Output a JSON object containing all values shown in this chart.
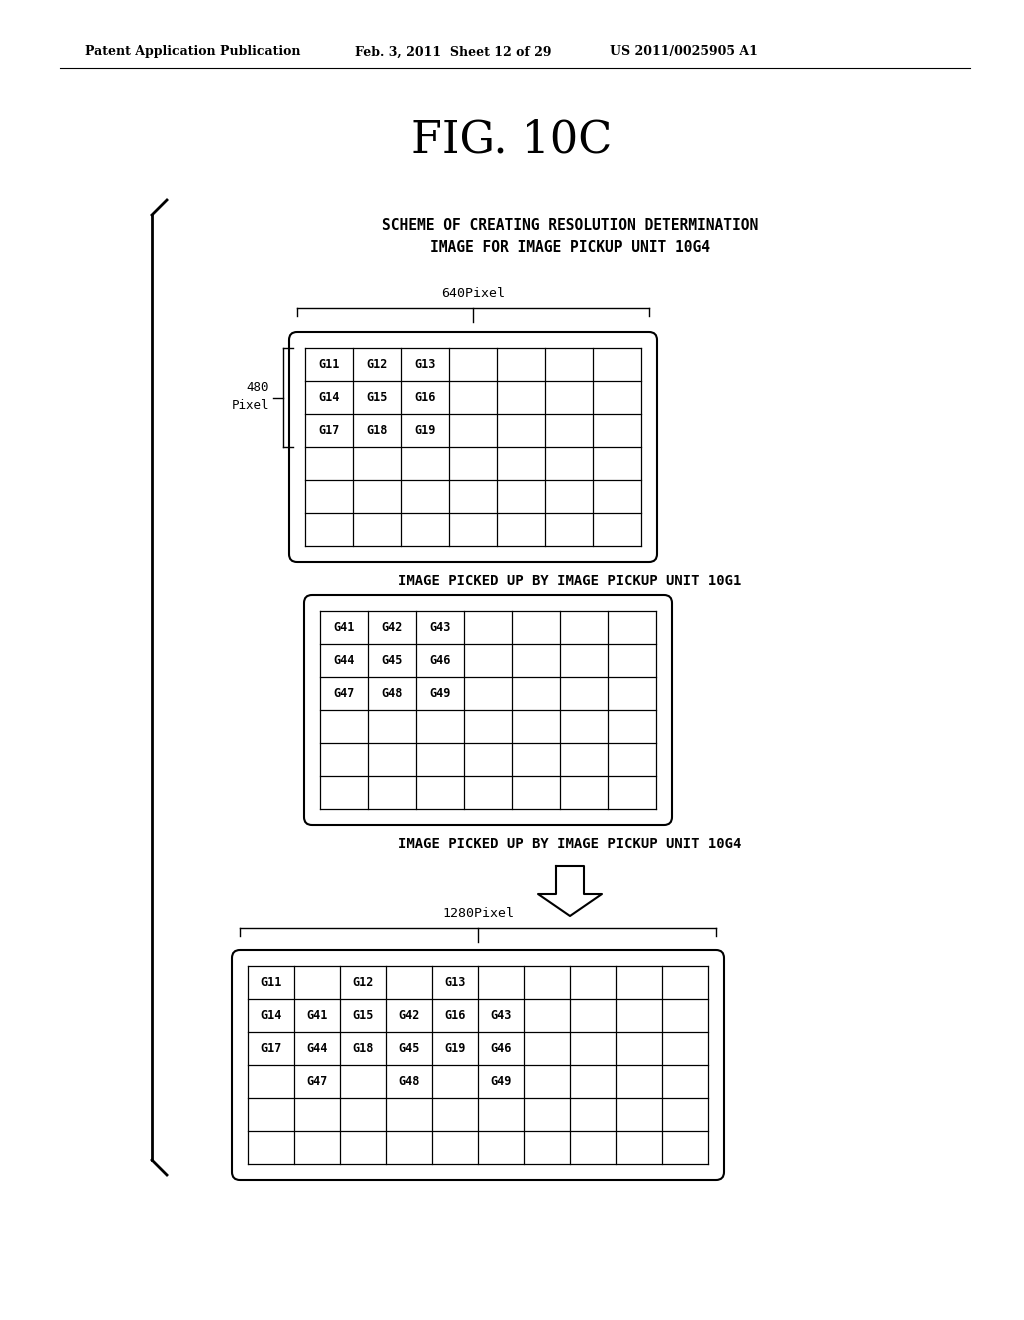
{
  "title": "FIG. 10C",
  "header_left": "Patent Application Publication",
  "header_mid": "Feb. 3, 2011  Sheet 12 of 29",
  "header_right": "US 2011/0025905 A1",
  "scheme_text_line1": "SCHEME OF CREATING RESOLUTION DETERMINATION",
  "scheme_text_line2": "IMAGE FOR IMAGE PICKUP UNIT 10G4",
  "label_640": "640Pixel",
  "label_480_line1": "480",
  "label_480_line2": "Pixel",
  "label_1280": "1280Pixel",
  "caption1": "IMAGE PICKED UP BY IMAGE PICKUP UNIT 10G1",
  "caption2": "IMAGE PICKED UP BY IMAGE PICKUP UNIT 10G4",
  "grid1_cells": [
    [
      "G11",
      "G12",
      "G13",
      "",
      "",
      "",
      ""
    ],
    [
      "G14",
      "G15",
      "G16",
      "",
      "",
      "",
      ""
    ],
    [
      "G17",
      "G18",
      "G19",
      "",
      "",
      "",
      ""
    ],
    [
      "",
      "",
      "",
      "",
      "",
      "",
      ""
    ],
    [
      "",
      "",
      "",
      "",
      "",
      "",
      ""
    ],
    [
      "",
      "",
      "",
      "",
      "",
      "",
      ""
    ]
  ],
  "grid2_cells": [
    [
      "G41",
      "G42",
      "G43",
      "",
      "",
      "",
      ""
    ],
    [
      "G44",
      "G45",
      "G46",
      "",
      "",
      "",
      ""
    ],
    [
      "G47",
      "G48",
      "G49",
      "",
      "",
      "",
      ""
    ],
    [
      "",
      "",
      "",
      "",
      "",
      "",
      ""
    ],
    [
      "",
      "",
      "",
      "",
      "",
      "",
      ""
    ],
    [
      "",
      "",
      "",
      "",
      "",
      "",
      ""
    ]
  ],
  "grid3_cells": [
    [
      "G11",
      "",
      "G12",
      "",
      "G13",
      "",
      "",
      "",
      "",
      ""
    ],
    [
      "G14",
      "G41",
      "G15",
      "G42",
      "G16",
      "G43",
      "",
      "",
      "",
      ""
    ],
    [
      "G17",
      "G44",
      "G18",
      "G45",
      "G19",
      "G46",
      "",
      "",
      "",
      ""
    ],
    [
      "",
      "G47",
      "",
      "G48",
      "",
      "G49",
      "",
      "",
      "",
      ""
    ],
    [
      "",
      "",
      "",
      "",
      "",
      "",
      "",
      "",
      "",
      ""
    ],
    [
      "",
      "",
      "",
      "",
      "",
      "",
      "",
      "",
      "",
      ""
    ]
  ],
  "bg_color": "#ffffff",
  "text_color": "#000000",
  "grid_color": "#000000"
}
